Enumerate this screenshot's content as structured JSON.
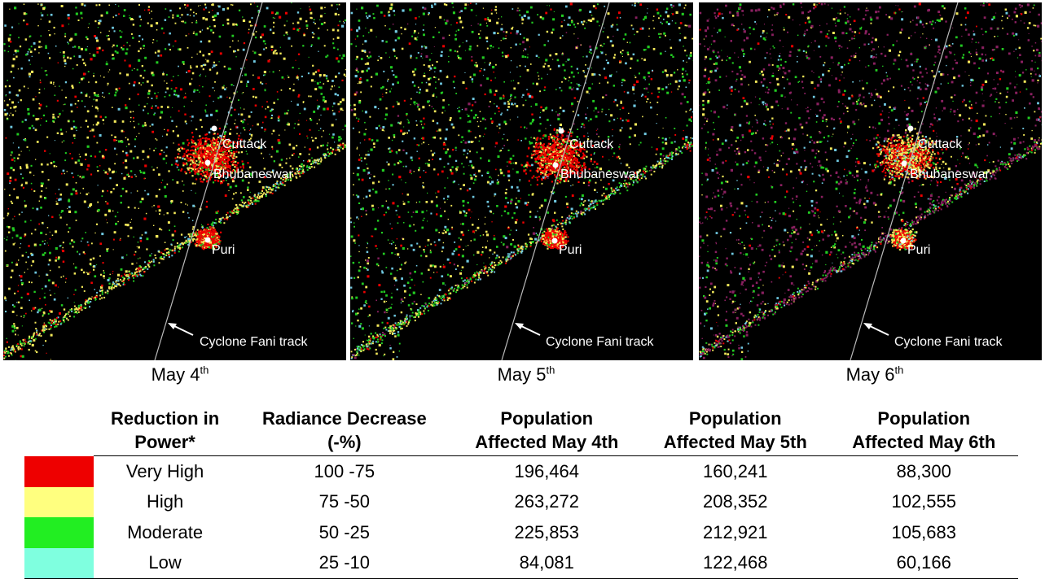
{
  "panels": [
    {
      "date_main": "May 4",
      "date_sup": "th",
      "cities": [
        "Cuttack",
        "Bhubaneswar",
        "Puri"
      ],
      "track_label": "Cyclone Fani track"
    },
    {
      "date_main": "May 5",
      "date_sup": "th",
      "cities": [
        "Cuttack",
        "Bhubaneswar",
        "Puri"
      ],
      "track_label": "Cyclone Fani track"
    },
    {
      "date_main": "May 6",
      "date_sup": "th",
      "cities": [
        "Cuttack",
        "Bhubaneswar",
        "Puri"
      ],
      "track_label": "Cyclone Fani track"
    }
  ],
  "table": {
    "headers": {
      "reduction": [
        "Reduction in",
        "Power*"
      ],
      "radiance": [
        "Radiance Decrease",
        "(-%)"
      ],
      "pop4": [
        "Population",
        "Affected May 4th"
      ],
      "pop5": [
        "Population",
        "Affected May 5th"
      ],
      "pop6": [
        "Population",
        "Affected May 6th"
      ]
    },
    "rows": [
      {
        "color": "#ee0000",
        "level": "Very High",
        "radiance": "100 -75",
        "pop4": "196,464",
        "pop5": "160,241",
        "pop6": "88,300"
      },
      {
        "color": "#ffff7f",
        "level": "High",
        "radiance": "75 -50",
        "pop4": "263,272",
        "pop5": "208,352",
        "pop6": "102,555"
      },
      {
        "color": "#22ee22",
        "level": "Moderate",
        "radiance": "50 -25",
        "pop4": "225,853",
        "pop5": "212,921",
        "pop6": "105,683"
      },
      {
        "color": "#7fffdf",
        "level": "Low",
        "radiance": "25 -10",
        "pop4": "84,081",
        "pop5": "122,468",
        "pop6": "60,166"
      }
    ]
  },
  "map_colors": {
    "very_high": "#ee0000",
    "high": "#f2e85a",
    "moderate": "#22cc22",
    "low": "#6fc8e0",
    "no_data": "#8a2060",
    "background": "#000000"
  }
}
